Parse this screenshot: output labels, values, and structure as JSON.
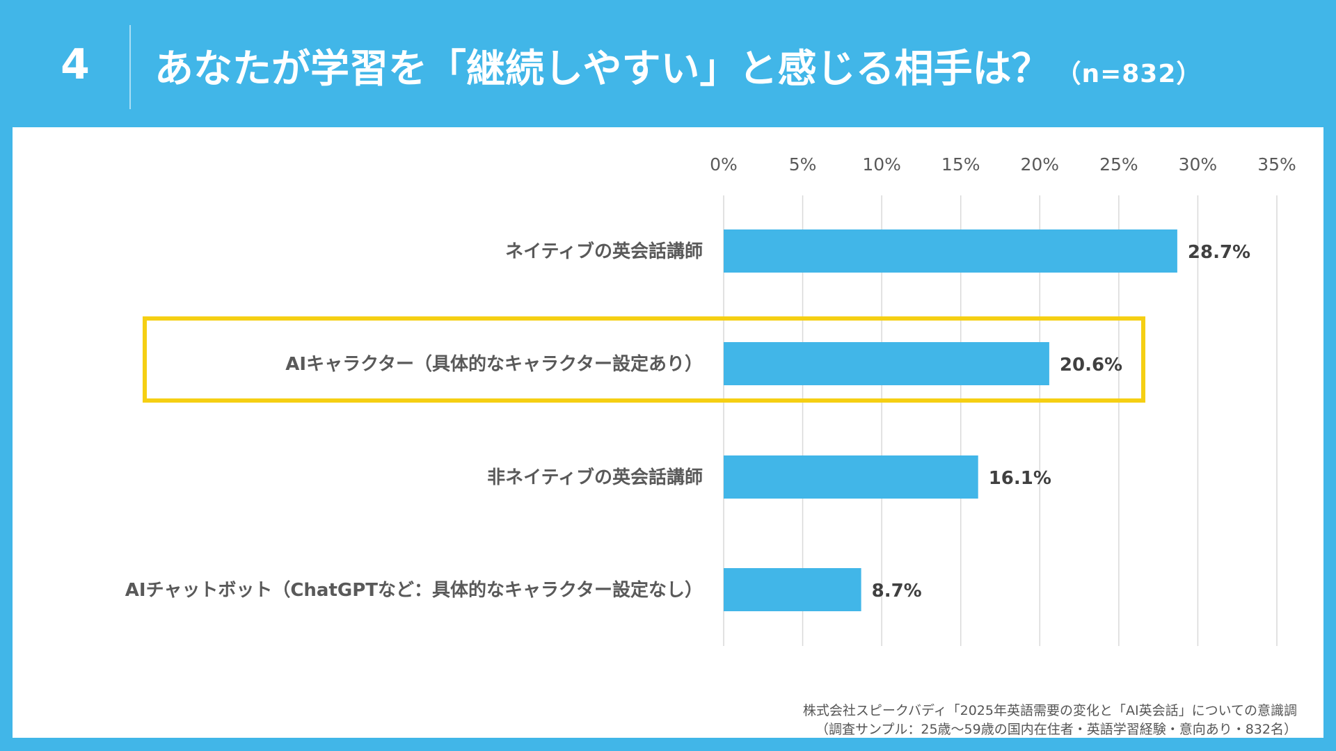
{
  "header": {
    "number": "4",
    "title": "あなたが学習を「継続しやすい」と感じる相手は？",
    "n_label": "（n=832）"
  },
  "chart_data": {
    "type": "bar",
    "orientation": "horizontal",
    "categories": [
      "ネイティブの英会話講師",
      "AIキャラクター（具体的なキャラクター設定あり）",
      "非ネイティブの英会話講師",
      "AIチャットボット（ChatGPTなど：具体的なキャラクター設定なし）"
    ],
    "values": [
      28.7,
      20.6,
      16.1,
      8.7
    ],
    "value_labels": [
      "28.7%",
      "20.6%",
      "16.1%",
      "8.7%"
    ],
    "xlim": [
      0,
      35
    ],
    "x_ticks": [
      0,
      5,
      10,
      15,
      20,
      25,
      30,
      35
    ],
    "x_tick_labels": [
      "0%",
      "5%",
      "10%",
      "15%",
      "20%",
      "25%",
      "30%",
      "35%"
    ],
    "x_axis_position": "top",
    "grid": true,
    "highlighted_category_index": 1,
    "colors": {
      "bar": "#41b6e8",
      "highlight": "#f5cf13",
      "grid": "#d9d9d9",
      "text": "#595959"
    }
  },
  "source": {
    "line1": "株式会社スピークバディ「2025年英語需要の変化と「AI英会話」についての意識調",
    "line2": "（調査サンプル：25歳〜59歳の国内在住者・英語学習経験・意向あり・832名）"
  }
}
